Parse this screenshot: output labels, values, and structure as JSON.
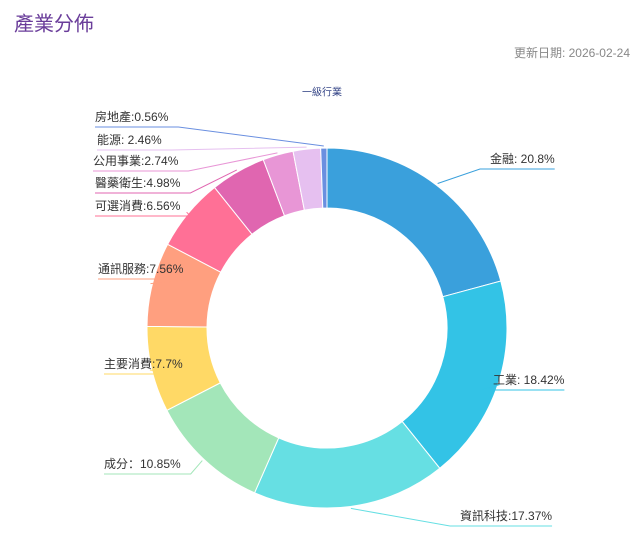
{
  "header": {
    "title": "產業分佈",
    "update_date": "更新日期: 2026-02-24"
  },
  "chart_data": {
    "type": "pie",
    "title": "一級行業",
    "values": [
      20.8,
      18.42,
      17.37,
      10.85,
      7.7,
      7.56,
      6.56,
      4.98,
      2.74,
      2.46,
      0.56
    ],
    "value_labels": [
      "金融: 20.8%",
      "工業: 18.42%",
      "資訊科技:17.37%",
      "成分：10.85%",
      "主要消費:7.7%",
      "通訊服務:7.56%",
      "可選消費:6.56%",
      "醫藥衛生:4.98%",
      "公用事業:2.74%",
      "能源: 2.46%",
      "房地產:0.56%"
    ],
    "colors": [
      "#3aa0dc",
      "#33c3e6",
      "#66dfe3",
      "#a3e6b9",
      "#ffd966",
      "#ff9f7f",
      "#ff7096",
      "#e066b0",
      "#e896d6",
      "#e6c0f0",
      "#6a8fe0"
    ]
  }
}
